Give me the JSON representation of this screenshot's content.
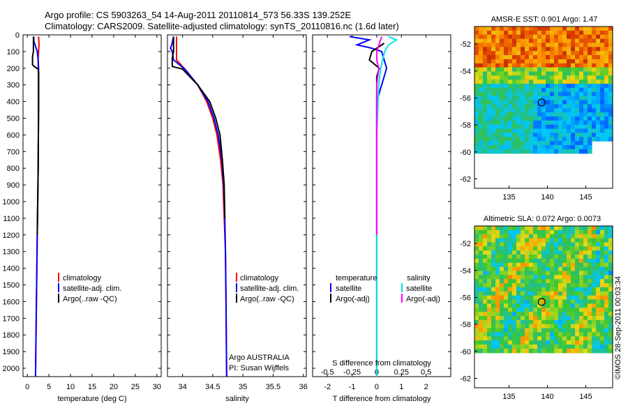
{
  "header": {
    "line1": "Argo profile: CS 5903263_54 14-Aug-2011 20110814_573 56.33S 139.252E",
    "line2": "Climatology: CARS2009. Satellite-adjusted climatology: synTS_20110816.nc (1.6d later)"
  },
  "depth_ticks": [
    "0",
    "100",
    "200",
    "300",
    "400",
    "500",
    "600",
    "700",
    "800",
    "900",
    "1000",
    "1100",
    "1200",
    "1300",
    "1400",
    "1500",
    "1600",
    "1700",
    "1800",
    "1900",
    "2000"
  ],
  "colors": {
    "climatology": "#ff0000",
    "satellite": "#0000ff",
    "argo": "#000000",
    "sal_sat": "#00e5e5",
    "sal_argo": "#ff00ff"
  },
  "chart_data": [
    {
      "type": "line",
      "panel": "temperature",
      "xlabel": "temperature (deg C)",
      "ylabel": "depth",
      "xlim": [
        -1,
        31
      ],
      "ylim": [
        2050,
        0
      ],
      "xticks": [
        "0",
        "5",
        "10",
        "15",
        "20",
        "25",
        "30"
      ],
      "legend": [
        "climatology",
        "satellite-adj. clim.",
        "Argo(..raw -QC)"
      ],
      "series": [
        {
          "name": "climatology",
          "values": [
            [
              2.6,
              10
            ],
            [
              2.7,
              60
            ],
            [
              2.5,
              140
            ],
            [
              2.5,
              190
            ],
            [
              2.6,
              230
            ],
            [
              2.6,
              400
            ],
            [
              2.5,
              800
            ],
            [
              2.3,
              1200
            ],
            [
              2.1,
              1600
            ],
            [
              1.9,
              2050
            ]
          ]
        },
        {
          "name": "satellite-adj. clim.",
          "values": [
            [
              1.5,
              10
            ],
            [
              1.5,
              40
            ],
            [
              1.8,
              60
            ],
            [
              2.3,
              100
            ],
            [
              2.5,
              150
            ],
            [
              2.6,
              200
            ],
            [
              2.6,
              400
            ],
            [
              2.5,
              800
            ],
            [
              2.3,
              1200
            ],
            [
              2.1,
              1600
            ],
            [
              1.9,
              2050
            ]
          ]
        },
        {
          "name": "Argo(..raw -QC)",
          "values": [
            [
              1.4,
              10
            ],
            [
              1.4,
              100
            ],
            [
              1.2,
              130
            ],
            [
              1.2,
              180
            ],
            [
              1.6,
              190
            ],
            [
              2.5,
              205
            ],
            [
              2.6,
              230
            ],
            [
              2.6,
              400
            ],
            [
              2.5,
              800
            ],
            [
              2.3,
              1200
            ]
          ]
        }
      ]
    },
    {
      "type": "line",
      "panel": "salinity",
      "xlabel": "salinity",
      "ylabel": "depth",
      "xlim": [
        33.75,
        36.05
      ],
      "ylim": [
        2050,
        0
      ],
      "xticks": [
        "34",
        "34.5",
        "35",
        "35.5",
        "36"
      ],
      "legend": [
        "climatology",
        "satellite-adj. clim.",
        "Argo(..raw -QC)"
      ],
      "annotation": [
        "Argo AUSTRALIA",
        "PI: Susan Wijffels"
      ],
      "series": [
        {
          "name": "climatology",
          "values": [
            [
              33.9,
              10
            ],
            [
              33.9,
              100
            ],
            [
              33.9,
              150
            ],
            [
              34.05,
              210
            ],
            [
              34.25,
              300
            ],
            [
              34.4,
              400
            ],
            [
              34.5,
              500
            ],
            [
              34.57,
              600
            ],
            [
              34.63,
              750
            ],
            [
              34.67,
              900
            ],
            [
              34.69,
              1100
            ],
            [
              34.71,
              1300
            ],
            [
              34.72,
              1600
            ],
            [
              34.73,
              2050
            ]
          ]
        },
        {
          "name": "satellite-adj. clim.",
          "values": [
            [
              33.85,
              10
            ],
            [
              33.82,
              60
            ],
            [
              33.8,
              80
            ],
            [
              33.83,
              100
            ],
            [
              33.85,
              150
            ],
            [
              33.95,
              180
            ],
            [
              34.05,
              210
            ],
            [
              34.25,
              300
            ],
            [
              34.42,
              400
            ],
            [
              34.52,
              500
            ],
            [
              34.59,
              600
            ],
            [
              34.65,
              750
            ],
            [
              34.68,
              900
            ],
            [
              34.7,
              1100
            ],
            [
              34.71,
              1300
            ],
            [
              34.72,
              1600
            ],
            [
              34.73,
              2050
            ]
          ]
        },
        {
          "name": "Argo(..raw -QC)",
          "values": [
            [
              33.85,
              10
            ],
            [
              33.85,
              100
            ],
            [
              33.83,
              140
            ],
            [
              33.83,
              190
            ],
            [
              34.0,
              205
            ],
            [
              34.25,
              300
            ],
            [
              34.45,
              400
            ],
            [
              34.55,
              500
            ],
            [
              34.62,
              600
            ],
            [
              34.66,
              750
            ],
            [
              34.69,
              900
            ],
            [
              34.7,
              1100
            ]
          ]
        }
      ]
    },
    {
      "type": "line",
      "panel": "difference",
      "xlabel": "T difference from climatology",
      "xlabel2": "S difference from climatology",
      "ylabel": "depth",
      "xlim": [
        -2.6,
        3.0
      ],
      "ylim": [
        2050,
        0
      ],
      "xticks_T": [
        "-2",
        "-1",
        "0",
        "1",
        "2"
      ],
      "xticks_S": [
        "-0.5",
        "-0.25",
        "0",
        "0.25",
        "0.5"
      ],
      "legend_left": {
        "title": "temperature",
        "items": [
          "satellite",
          "Argo(-adj)"
        ]
      },
      "legend_right": {
        "title": "salinity",
        "items": [
          "satellite",
          "Argo(-adj)"
        ]
      },
      "series": [
        {
          "name": "T satellite",
          "values": [
            [
              -1.1,
              10
            ],
            [
              -0.3,
              30
            ],
            [
              -0.8,
              60
            ],
            [
              -0.2,
              80
            ],
            [
              0.2,
              100
            ],
            [
              0.3,
              150
            ],
            [
              0.4,
              200
            ],
            [
              0.2,
              300
            ],
            [
              0.0,
              400
            ],
            [
              0.0,
              800
            ],
            [
              0.0,
              2050
            ]
          ]
        },
        {
          "name": "T Argo(-adj)",
          "values": [
            [
              0.3,
              50
            ],
            [
              -0.2,
              100
            ],
            [
              -0.3,
              150
            ],
            [
              0.1,
              200
            ],
            [
              0.0,
              250
            ],
            [
              0.0,
              800
            ],
            [
              0.0,
              1200
            ]
          ]
        },
        {
          "name": "S satellite",
          "values": [
            [
              0.12,
              10
            ],
            [
              0.2,
              30
            ],
            [
              0.12,
              60
            ],
            [
              0.08,
              100
            ],
            [
              0.04,
              200
            ],
            [
              0.02,
              300
            ],
            [
              0.0,
              600
            ],
            [
              0.0,
              1000
            ],
            [
              0.0,
              2050
            ]
          ]
        },
        {
          "name": "S Argo(-adj)",
          "values": [
            [
              0.05,
              10
            ],
            [
              0.0,
              100
            ],
            [
              0.0,
              150
            ],
            [
              0.02,
              200
            ],
            [
              0.0,
              300
            ],
            [
              0.0,
              1200
            ]
          ]
        }
      ]
    },
    {
      "type": "heatmap",
      "panel": "sst_map",
      "title": "AMSR-E SST: 0.901 Argo: 1.47",
      "xlim": [
        130.5,
        148.5
      ],
      "ylim": [
        -62.7,
        -50.7
      ],
      "xticks": [
        "135",
        "140",
        "145"
      ],
      "yticks": [
        "-52",
        "-54",
        "-56",
        "-58",
        "-60",
        "-62"
      ],
      "marker": [
        139.25,
        -56.33
      ]
    },
    {
      "type": "heatmap",
      "panel": "sla_map",
      "title": "Altimetric SLA: 0.072 Argo: 0.0073",
      "xlim": [
        130.5,
        148.5
      ],
      "ylim": [
        -62.7,
        -50.7
      ],
      "xticks": [
        "135",
        "140",
        "145"
      ],
      "yticks": [
        "-52",
        "-54",
        "-56",
        "-58",
        "-60",
        "-62"
      ],
      "marker": [
        139.25,
        -56.33
      ]
    }
  ],
  "stamp": "©IMOS 28-Sep-2011 00:03:34"
}
